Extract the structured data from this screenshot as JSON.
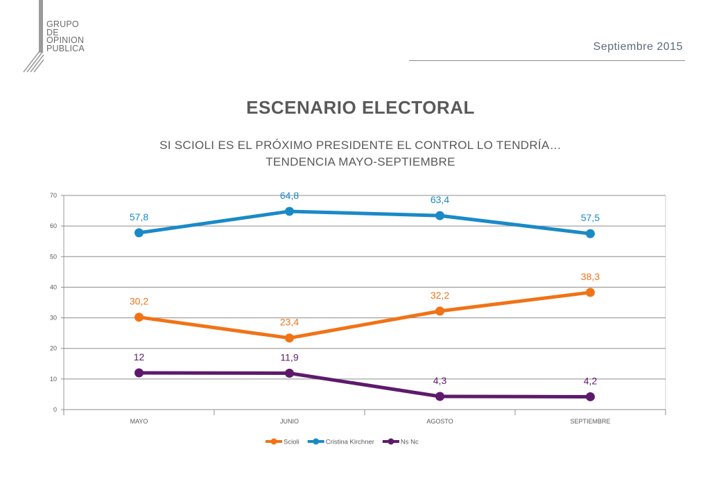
{
  "brand": {
    "lines": [
      "GRUPO",
      "DE",
      "OPINION",
      "PUBLICA"
    ]
  },
  "header": {
    "date": "Septiembre 2015"
  },
  "title": "ESCENARIO ELECTORAL",
  "subtitle_lines": [
    "SI SCIOLI ES EL PRÓXIMO PRESIDENTE EL CONTROL LO TENDRÍA…",
    "TENDENCIA MAYO-SEPTIEMBRE"
  ],
  "chart_data": {
    "type": "line",
    "categories": [
      "MAYO",
      "JUNIO",
      "AGOSTO",
      "SEPTIEMBRE"
    ],
    "ylim": [
      0,
      70
    ],
    "yticks": [
      0,
      10,
      20,
      30,
      40,
      50,
      60,
      70
    ],
    "grid": true,
    "legend_position": "bottom",
    "series": [
      {
        "name": "Scioli",
        "color": "#f07317",
        "values": [
          30.2,
          23.4,
          32.2,
          38.3
        ],
        "labels": [
          "30,2",
          "23,4",
          "32,2",
          "38,3"
        ]
      },
      {
        "name": "Cristina Kirchner",
        "color": "#1a8ac6",
        "values": [
          57.8,
          64.8,
          63.4,
          57.5
        ],
        "labels": [
          "57,8",
          "64,8",
          "63,4",
          "57,5"
        ]
      },
      {
        "name": "Ns Nc",
        "color": "#5d1a6b",
        "values": [
          12,
          11.9,
          4.3,
          4.2
        ],
        "labels": [
          "12",
          "11,9",
          "4,3",
          "4,2"
        ]
      }
    ]
  }
}
